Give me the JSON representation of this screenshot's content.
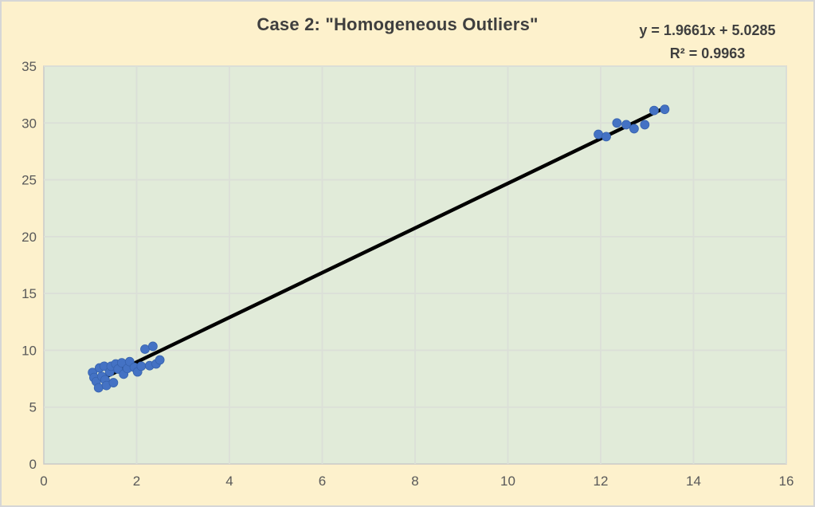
{
  "chart_data": {
    "type": "scatter",
    "title": "Case 2: \"Homogeneous Outliers\"",
    "equation": "y = 1.9661x + 5.0285",
    "r_squared": "R² = 0.9963",
    "xlabel": "",
    "ylabel": "",
    "legend": false,
    "grid": true,
    "x_axis": {
      "min": 0,
      "max": 16,
      "tick_step": 2,
      "ticks": [
        0,
        2,
        4,
        6,
        8,
        10,
        12,
        14,
        16
      ]
    },
    "y_axis": {
      "min": 0,
      "max": 35,
      "tick_step": 5,
      "ticks": [
        0,
        5,
        10,
        15,
        20,
        25,
        30,
        35
      ]
    },
    "series": [
      {
        "name": "scatter-points",
        "marker": "circle",
        "color": "#4472C4",
        "points": [
          [
            1.05,
            8.05
          ],
          [
            1.08,
            7.6
          ],
          [
            1.13,
            7.25
          ],
          [
            1.18,
            6.7
          ],
          [
            1.2,
            8.45
          ],
          [
            1.25,
            7.7
          ],
          [
            1.3,
            8.6
          ],
          [
            1.32,
            7.4
          ],
          [
            1.35,
            6.9
          ],
          [
            1.42,
            8.1
          ],
          [
            1.45,
            8.6
          ],
          [
            1.5,
            7.15
          ],
          [
            1.55,
            8.8
          ],
          [
            1.6,
            8.35
          ],
          [
            1.68,
            8.9
          ],
          [
            1.72,
            7.9
          ],
          [
            1.8,
            8.4
          ],
          [
            1.85,
            9.0
          ],
          [
            1.95,
            8.5
          ],
          [
            2.02,
            8.1
          ],
          [
            2.1,
            8.6
          ],
          [
            2.18,
            10.1
          ],
          [
            2.28,
            8.65
          ],
          [
            2.35,
            10.35
          ],
          [
            2.42,
            8.8
          ],
          [
            2.5,
            9.15
          ],
          [
            11.95,
            29.0
          ],
          [
            12.12,
            28.8
          ],
          [
            12.35,
            30.0
          ],
          [
            12.55,
            29.85
          ],
          [
            12.72,
            29.5
          ],
          [
            12.95,
            29.85
          ],
          [
            13.15,
            31.1
          ],
          [
            13.38,
            31.2
          ]
        ]
      }
    ],
    "trendline": {
      "slope": 1.9661,
      "intercept": 5.0285,
      "x_start": 1.1,
      "x_end": 13.42,
      "color": "#000000",
      "width": 4.5
    },
    "colors": {
      "background": "#FDF1CC",
      "plot_area_fill": "#E1EBD9",
      "gridline": "#DBDFD8",
      "plot_border": "#C9C9C9",
      "tick_label": "#595959",
      "title_text": "#3F3F3F",
      "marker_fill": "#4472C4",
      "marker_edge": "#3763AE",
      "trendline": "#000000"
    }
  }
}
